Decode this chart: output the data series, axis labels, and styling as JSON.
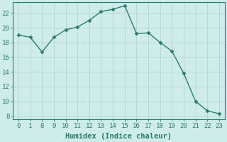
{
  "xlabel": "Humidex (Indice chaleur)",
  "x_labels": [
    "0",
    "1",
    "8",
    "9",
    "10",
    "11",
    "12",
    "13",
    "14",
    "15",
    "16",
    "17",
    "18",
    "19",
    "20",
    "21",
    "22",
    "23"
  ],
  "y": [
    19.0,
    18.7,
    16.7,
    18.7,
    19.7,
    20.1,
    21.0,
    22.2,
    22.5,
    23.0,
    19.2,
    19.3,
    18.0,
    16.8,
    13.8,
    10.0,
    8.7,
    8.3
  ],
  "line_color": "#2a7d6e",
  "marker_color": "#2a7d6e",
  "bg_color": "#ceecea",
  "grid_color_major": "#b8d8d4",
  "grid_color_minor": "#b8d8d4",
  "axis_color": "#2a7d6e",
  "tick_color": "#2a7d6e",
  "ylim": [
    7.5,
    23.5
  ],
  "yticks": [
    8,
    10,
    12,
    14,
    16,
    18,
    20,
    22
  ],
  "label_fontsize": 7.5,
  "tick_fontsize": 6.5,
  "linewidth": 1.0,
  "markersize": 2.5
}
